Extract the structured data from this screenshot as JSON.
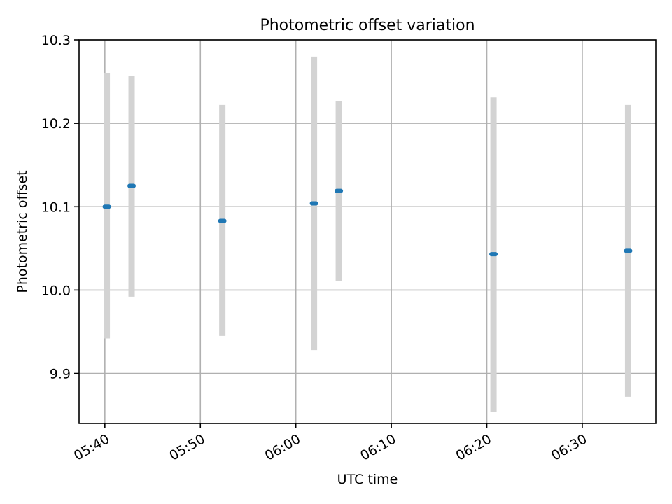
{
  "chart_data": {
    "type": "scatter",
    "title": "Photometric offset variation",
    "xlabel": "UTC time",
    "ylabel": "Photometric offset",
    "x_ticks": [
      "05:40",
      "05:50",
      "06:00",
      "06:10",
      "06:20",
      "06:30"
    ],
    "y_ticks": [
      9.9,
      10.0,
      10.1,
      10.2,
      10.3
    ],
    "xlim": [
      "05:37:18",
      "06:37:42"
    ],
    "ylim": [
      9.84,
      10.3
    ],
    "grid": true,
    "legend": "none",
    "colors": {
      "marker": "#1f77b4",
      "errorbar": "#d3d3d3",
      "grid": "#b0b0b0"
    },
    "series": [
      {
        "points": [
          {
            "x": "05:40:12",
            "y": 10.1,
            "yerr_low": 9.942,
            "yerr_high": 10.26
          },
          {
            "x": "05:42:48",
            "y": 10.125,
            "yerr_low": 9.992,
            "yerr_high": 10.257
          },
          {
            "x": "05:52:18",
            "y": 10.083,
            "yerr_low": 9.945,
            "yerr_high": 10.222
          },
          {
            "x": "06:01:54",
            "y": 10.104,
            "yerr_low": 9.928,
            "yerr_high": 10.28
          },
          {
            "x": "06:04:30",
            "y": 10.119,
            "yerr_low": 10.011,
            "yerr_high": 10.227
          },
          {
            "x": "06:20:42",
            "y": 10.043,
            "yerr_low": 9.854,
            "yerr_high": 10.231
          },
          {
            "x": "06:34:48",
            "y": 10.047,
            "yerr_low": 9.872,
            "yerr_high": 10.222
          }
        ]
      }
    ]
  }
}
